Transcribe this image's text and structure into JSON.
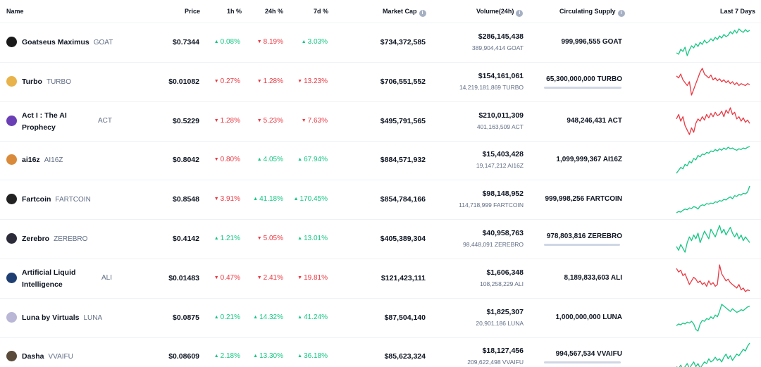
{
  "header": {
    "name": "Name",
    "price": "Price",
    "h1": "1h %",
    "h24": "24h %",
    "d7": "7d %",
    "market_cap": "Market Cap",
    "volume": "Volume(24h)",
    "supply": "Circulating Supply",
    "last7": "Last 7 Days"
  },
  "colors": {
    "up": "#16c784",
    "down": "#ea3943"
  },
  "rows": [
    {
      "name": "Goatseus Maximus",
      "symbol": "GOAT",
      "logo": "#1a1a1a",
      "price": "$0.7344",
      "h1": "0.08%",
      "h1_dir": "up",
      "h24": "8.19%",
      "h24_dir": "down",
      "d7": "3.03%",
      "d7_dir": "up",
      "market_cap": "$734,372,585",
      "volume": "$286,145,438",
      "volume_sub": "389,904,414 GOAT",
      "supply": "999,996,555 GOAT",
      "supply_fill": null,
      "trend": "up",
      "spark": [
        40,
        38,
        45,
        42,
        48,
        36,
        44,
        50,
        47,
        53,
        49,
        55,
        52,
        58,
        54,
        56,
        60,
        57,
        62,
        59,
        64,
        61,
        66,
        63,
        65,
        70,
        67,
        72,
        68,
        74,
        71,
        69,
        73,
        70,
        72
      ]
    },
    {
      "name": "Turbo",
      "symbol": "TURBO",
      "logo": "#e8b34a",
      "price": "$0.01082",
      "h1": "0.27%",
      "h1_dir": "down",
      "h24": "1.28%",
      "h24_dir": "down",
      "d7": "13.23%",
      "d7_dir": "down",
      "market_cap": "$706,551,552",
      "volume": "$154,161,061",
      "volume_sub": "14,219,181,869 TURBO",
      "supply": "65,300,000,000 TURBO",
      "supply_fill": 1.0,
      "trend": "down",
      "spark": [
        62,
        60,
        64,
        58,
        55,
        52,
        56,
        42,
        48,
        54,
        60,
        66,
        70,
        64,
        62,
        60,
        63,
        58,
        60,
        57,
        59,
        56,
        58,
        55,
        57,
        54,
        56,
        53,
        55,
        52,
        54,
        53,
        52,
        54,
        53
      ]
    },
    {
      "name": "Act I : The AI Prophecy",
      "name1": "Act I : The AI",
      "name2": "Prophecy",
      "symbol": "ACT",
      "logo": "#6a3fb5",
      "price": "$0.5229",
      "h1": "1.28%",
      "h1_dir": "down",
      "h24": "5.23%",
      "h24_dir": "down",
      "d7": "7.63%",
      "d7_dir": "down",
      "market_cap": "$495,791,565",
      "volume": "$210,011,309",
      "volume_sub": "401,163,509 ACT",
      "supply": "948,246,431 ACT",
      "supply_fill": null,
      "trend": "down",
      "spark": [
        58,
        62,
        56,
        60,
        52,
        48,
        44,
        50,
        46,
        54,
        58,
        56,
        60,
        57,
        62,
        59,
        63,
        60,
        64,
        61,
        62,
        65,
        60,
        66,
        63,
        68,
        62,
        64,
        58,
        60,
        56,
        59,
        55,
        57,
        54
      ]
    },
    {
      "name": "ai16z",
      "symbol": "AI16Z",
      "logo": "#d98a3a",
      "price": "$0.8042",
      "h1": "0.80%",
      "h1_dir": "down",
      "h24": "4.05%",
      "h24_dir": "up",
      "d7": "67.94%",
      "d7_dir": "up",
      "market_cap": "$884,571,932",
      "volume": "$15,403,428",
      "volume_sub": "19,147,212 AI16Z",
      "supply": "1,099,999,367 AI16Z",
      "supply_fill": null,
      "trend": "up",
      "spark": [
        30,
        34,
        38,
        36,
        42,
        40,
        46,
        44,
        50,
        48,
        54,
        52,
        56,
        55,
        58,
        57,
        60,
        59,
        62,
        60,
        63,
        61,
        64,
        62,
        65,
        63,
        64,
        62,
        61,
        63,
        62,
        64,
        63,
        65,
        66
      ]
    },
    {
      "name": "Fartcoin",
      "symbol": "FARTCOIN",
      "logo": "#222222",
      "price": "$0.8548",
      "h1": "3.91%",
      "h1_dir": "down",
      "h24": "41.18%",
      "h24_dir": "up",
      "d7": "170.45%",
      "d7_dir": "up",
      "market_cap": "$854,784,166",
      "volume": "$98,148,952",
      "volume_sub": "114,718,999 FARTCOIN",
      "supply": "999,998,256 FARTCOIN",
      "supply_fill": null,
      "trend": "up",
      "spark": [
        30,
        32,
        31,
        34,
        36,
        35,
        38,
        37,
        40,
        39,
        36,
        41,
        43,
        42,
        45,
        44,
        46,
        45,
        48,
        47,
        50,
        49,
        52,
        51,
        54,
        56,
        53,
        58,
        57,
        60,
        59,
        62,
        61,
        64,
        74
      ]
    },
    {
      "name": "Zerebro",
      "symbol": "ZEREBRO",
      "logo": "#2b2b3a",
      "price": "$0.4142",
      "h1": "1.21%",
      "h1_dir": "up",
      "h24": "5.05%",
      "h24_dir": "down",
      "d7": "13.01%",
      "d7_dir": "up",
      "market_cap": "$405,389,304",
      "volume": "$40,958,763",
      "volume_sub": "98,448,091 ZEREBRO",
      "supply": "978,803,816 ZEREBRO",
      "supply_fill": 0.98,
      "trend": "up",
      "spark": [
        48,
        44,
        50,
        46,
        42,
        52,
        58,
        54,
        60,
        56,
        62,
        52,
        58,
        64,
        60,
        56,
        66,
        62,
        58,
        64,
        70,
        62,
        66,
        60,
        64,
        68,
        62,
        58,
        62,
        56,
        60,
        54,
        58,
        55,
        52
      ]
    },
    {
      "name": "Artificial Liquid Intelligence",
      "name1": "Artificial Liquid",
      "name2": "Intelligence",
      "symbol": "ALI",
      "logo": "#1f3f73",
      "price": "$0.01483",
      "h1": "0.47%",
      "h1_dir": "down",
      "h24": "2.41%",
      "h24_dir": "down",
      "d7": "19.81%",
      "d7_dir": "down",
      "market_cap": "$121,423,111",
      "volume": "$1,606,348",
      "volume_sub": "108,258,229 ALI",
      "supply": "8,189,833,603 ALI",
      "supply_fill": null,
      "trend": "down",
      "spark": [
        66,
        62,
        64,
        58,
        60,
        54,
        48,
        52,
        56,
        54,
        50,
        52,
        48,
        50,
        46,
        52,
        48,
        50,
        46,
        48,
        70,
        60,
        56,
        52,
        54,
        50,
        48,
        46,
        44,
        48,
        42,
        44,
        40,
        42,
        41
      ]
    },
    {
      "name": "Luna by Virtuals",
      "symbol": "LUNA",
      "logo": "#b9b6d6",
      "price": "$0.0875",
      "h1": "0.21%",
      "h1_dir": "up",
      "h24": "14.32%",
      "h24_dir": "up",
      "d7": "41.24%",
      "d7_dir": "up",
      "market_cap": "$87,504,140",
      "volume": "$1,825,307",
      "volume_sub": "20,901,186 LUNA",
      "supply": "1,000,000,000 LUNA",
      "supply_fill": null,
      "trend": "up",
      "spark": [
        44,
        46,
        45,
        47,
        46,
        48,
        47,
        49,
        46,
        40,
        38,
        46,
        50,
        49,
        52,
        51,
        54,
        52,
        56,
        54,
        60,
        68,
        66,
        64,
        62,
        60,
        63,
        61,
        59,
        60,
        62,
        61,
        63,
        65,
        66
      ]
    },
    {
      "name": "Dasha",
      "symbol": "VVAIFU",
      "logo": "#5a4a3a",
      "price": "$0.08609",
      "h1": "2.18%",
      "h1_dir": "up",
      "h24": "13.30%",
      "h24_dir": "up",
      "d7": "36.18%",
      "d7_dir": "up",
      "market_cap": "$85,623,324",
      "volume": "$18,127,456",
      "volume_sub": "209,622,498 VVAIFU",
      "supply": "994,567,534 VVAIFU",
      "supply_fill": 0.99,
      "trend": "up",
      "spark": [
        40,
        38,
        42,
        36,
        40,
        44,
        38,
        42,
        46,
        40,
        44,
        38,
        42,
        46,
        44,
        50,
        46,
        48,
        52,
        48,
        50,
        46,
        52,
        56,
        50,
        54,
        48,
        52,
        56,
        54,
        58,
        62,
        60,
        66,
        70
      ]
    }
  ]
}
